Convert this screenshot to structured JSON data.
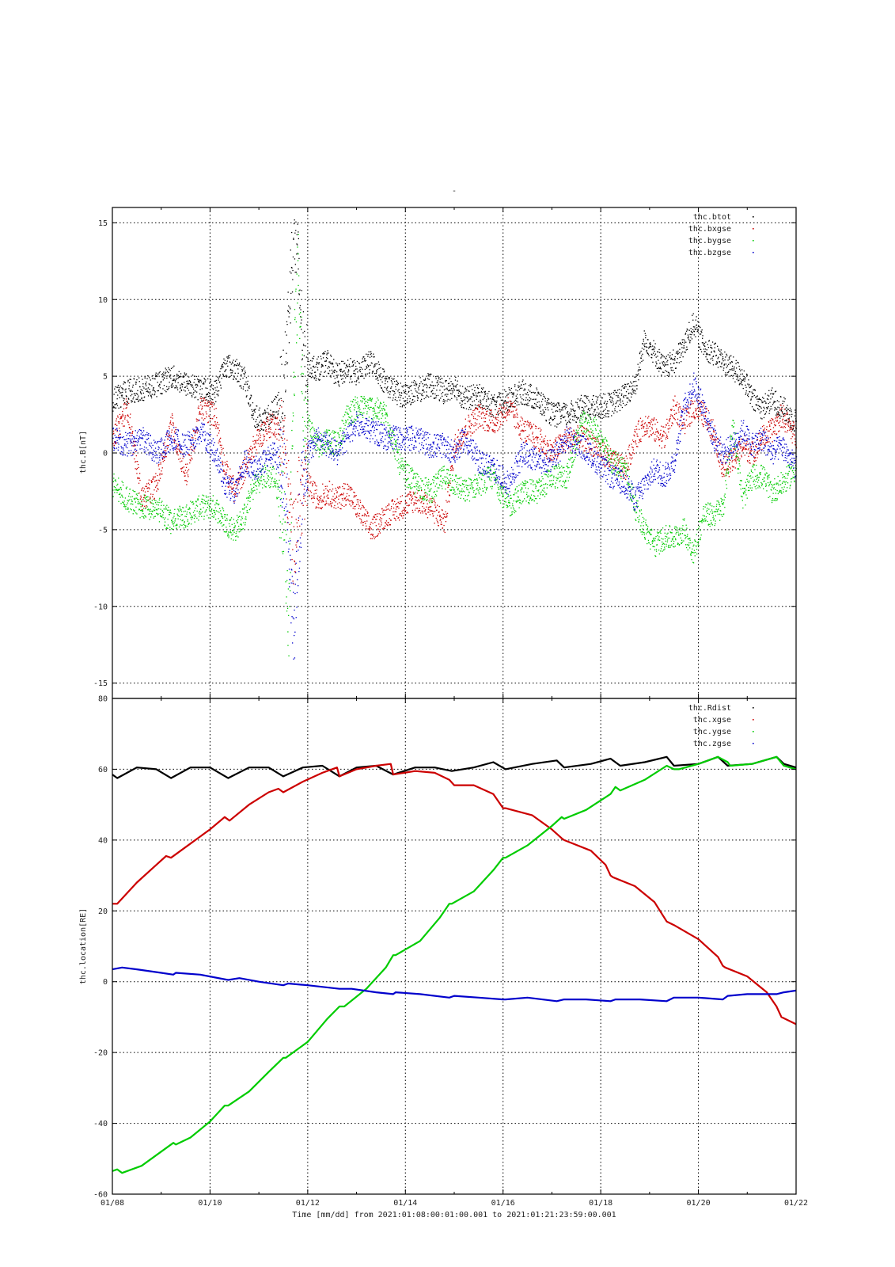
{
  "figure": {
    "title": "-"
  },
  "chart_data": [
    {
      "type": "scatter",
      "ylabel": "thc.B[nT]",
      "ylim": [
        -16,
        16
      ],
      "yticks": [
        -15,
        -10,
        -5,
        0,
        5,
        10,
        15
      ],
      "x_range": [
        "01/08",
        "01/22"
      ],
      "x_units": "day of January 2021",
      "grid": true,
      "legend_position": "top-right",
      "series": [
        {
          "name": "thc.btot",
          "color": "#000000",
          "x": [
            8.0,
            8.3,
            8.6,
            8.9,
            9.2,
            9.5,
            9.8,
            10.1,
            10.3,
            10.5,
            10.7,
            10.9,
            11.1,
            11.3,
            11.5,
            11.6,
            11.7,
            11.8,
            11.9,
            12.0,
            12.2,
            12.4,
            12.6,
            12.8,
            13.0,
            13.3,
            13.6,
            13.9,
            14.2,
            14.5,
            14.8,
            15.0,
            15.2,
            15.5,
            15.8,
            16.1,
            16.4,
            16.7,
            17.0,
            17.3,
            17.6,
            17.9,
            18.2,
            18.5,
            18.7,
            18.9,
            19.1,
            19.3,
            19.5,
            19.7,
            19.9,
            20.1,
            20.3,
            20.5,
            20.7,
            20.9,
            21.1,
            21.3,
            21.5,
            21.7,
            22.0
          ],
          "y": [
            3.5,
            4.0,
            4.2,
            4.5,
            5.0,
            4.5,
            4.2,
            4.0,
            5.8,
            5.5,
            4.8,
            2.5,
            2.0,
            2.8,
            4.0,
            9.0,
            14.5,
            12.0,
            6.5,
            5.8,
            5.5,
            6.0,
            5.0,
            5.5,
            5.2,
            6.0,
            4.5,
            3.8,
            4.0,
            4.5,
            4.0,
            4.5,
            3.5,
            3.8,
            3.0,
            3.5,
            4.0,
            3.5,
            2.5,
            2.5,
            3.0,
            3.0,
            3.2,
            3.8,
            4.5,
            7.5,
            6.5,
            5.5,
            6.0,
            7.0,
            8.5,
            7.0,
            6.5,
            6.0,
            5.5,
            5.0,
            3.5,
            3.0,
            3.5,
            3.0,
            2.0
          ]
        },
        {
          "name": "thc.bxgse",
          "color": "#cc0000",
          "x": [
            8.0,
            8.3,
            8.6,
            8.9,
            9.2,
            9.5,
            9.8,
            10.1,
            10.3,
            10.5,
            10.7,
            10.9,
            11.1,
            11.3,
            11.5,
            11.6,
            11.7,
            11.8,
            11.9,
            12.0,
            12.2,
            12.4,
            12.6,
            12.8,
            13.0,
            13.3,
            13.6,
            13.9,
            14.2,
            14.5,
            14.8,
            15.0,
            15.2,
            15.5,
            15.8,
            16.1,
            16.4,
            16.7,
            17.0,
            17.3,
            17.6,
            17.9,
            18.2,
            18.5,
            18.7,
            18.9,
            19.1,
            19.3,
            19.5,
            19.7,
            19.9,
            20.1,
            20.3,
            20.5,
            20.7,
            20.9,
            21.1,
            21.3,
            21.5,
            21.7,
            22.0
          ],
          "y": [
            1.0,
            3.0,
            -3.0,
            -2.0,
            2.0,
            -1.5,
            3.0,
            2.5,
            -1.0,
            -2.5,
            -1.0,
            0.5,
            1.5,
            2.0,
            1.0,
            -3.0,
            -6.0,
            -3.0,
            -2.5,
            -2.0,
            -3.0,
            -2.5,
            -3.0,
            -2.5,
            -3.5,
            -5.0,
            -4.0,
            -3.5,
            -3.0,
            -3.5,
            -4.5,
            0.5,
            1.5,
            2.5,
            2.0,
            3.0,
            1.5,
            1.0,
            0.0,
            1.0,
            1.0,
            0.5,
            -0.5,
            -1.0,
            1.0,
            2.0,
            1.5,
            1.0,
            3.0,
            2.0,
            3.0,
            2.5,
            1.5,
            -1.0,
            -0.5,
            0.5,
            0.0,
            1.0,
            1.5,
            2.5,
            1.0
          ]
        },
        {
          "name": "thc.bygse",
          "color": "#00cc00",
          "x": [
            8.0,
            8.3,
            8.6,
            8.9,
            9.2,
            9.5,
            9.8,
            10.1,
            10.3,
            10.5,
            10.7,
            10.9,
            11.1,
            11.3,
            11.5,
            11.6,
            11.7,
            11.8,
            11.9,
            12.0,
            12.2,
            12.4,
            12.6,
            12.8,
            13.0,
            13.3,
            13.6,
            13.9,
            14.2,
            14.5,
            14.8,
            15.0,
            15.2,
            15.5,
            15.8,
            16.1,
            16.4,
            16.7,
            17.0,
            17.3,
            17.6,
            17.9,
            18.2,
            18.5,
            18.7,
            18.9,
            19.1,
            19.3,
            19.5,
            19.7,
            19.9,
            20.1,
            20.3,
            20.5,
            20.7,
            20.9,
            21.1,
            21.3,
            21.5,
            21.7,
            22.0
          ],
          "y": [
            -2.0,
            -3.0,
            -3.5,
            -3.5,
            -4.5,
            -4.0,
            -3.5,
            -3.5,
            -4.5,
            -5.0,
            -4.0,
            -2.0,
            -1.5,
            -1.5,
            -4.0,
            -11.0,
            5.0,
            12.0,
            3.0,
            2.0,
            0.5,
            1.0,
            0.5,
            2.5,
            3.0,
            3.0,
            2.5,
            -1.0,
            -2.0,
            -2.5,
            -1.5,
            -2.0,
            -2.5,
            -2.0,
            -1.5,
            -3.5,
            -2.5,
            -2.5,
            -1.5,
            -1.5,
            2.0,
            1.5,
            -0.5,
            -1.0,
            -3.5,
            -5.0,
            -6.0,
            -5.5,
            -5.5,
            -5.0,
            -6.5,
            -4.0,
            -4.0,
            -3.5,
            2.0,
            -3.0,
            -1.5,
            -1.5,
            -2.5,
            -2.0,
            -1.0
          ]
        },
        {
          "name": "thc.bzgse",
          "color": "#0000cc",
          "x": [
            8.0,
            8.3,
            8.6,
            8.9,
            9.2,
            9.5,
            9.8,
            10.1,
            10.3,
            10.5,
            10.7,
            10.9,
            11.1,
            11.3,
            11.5,
            11.6,
            11.7,
            11.8,
            11.9,
            12.0,
            12.2,
            12.4,
            12.6,
            12.8,
            13.0,
            13.3,
            13.6,
            13.9,
            14.2,
            14.5,
            14.8,
            15.0,
            15.2,
            15.5,
            15.8,
            16.1,
            16.4,
            16.7,
            17.0,
            17.3,
            17.6,
            17.9,
            18.2,
            18.5,
            18.7,
            18.9,
            19.1,
            19.3,
            19.5,
            19.7,
            19.9,
            20.1,
            20.3,
            20.5,
            20.7,
            20.9,
            21.1,
            21.3,
            21.5,
            21.7,
            22.0
          ],
          "y": [
            1.0,
            0.5,
            1.0,
            0.0,
            1.0,
            0.5,
            1.5,
            0.0,
            -2.0,
            -2.5,
            -0.5,
            -1.0,
            -0.5,
            0.0,
            -1.0,
            -5.0,
            -12.0,
            -6.0,
            -1.5,
            0.0,
            1.0,
            0.5,
            0.0,
            1.0,
            2.0,
            1.5,
            1.0,
            1.0,
            1.0,
            0.5,
            0.5,
            0.0,
            1.0,
            -0.5,
            -1.0,
            -2.0,
            0.0,
            -0.5,
            -0.5,
            1.0,
            0.5,
            -0.5,
            -1.5,
            -2.0,
            -3.0,
            -2.0,
            -1.0,
            -1.5,
            -0.5,
            3.0,
            4.5,
            3.0,
            1.0,
            0.0,
            0.5,
            1.5,
            0.5,
            1.0,
            0.0,
            0.5,
            -1.0
          ]
        }
      ]
    },
    {
      "type": "line",
      "ylabel": "thc.location[RE]",
      "xlabel": "Time [mm/dd]  from 2021:01:08:00:01:00.001  to  2021:01:21:23:59:00.001",
      "ylim": [
        -60,
        80
      ],
      "yticks": [
        -60,
        -40,
        -20,
        0,
        20,
        40,
        60,
        80
      ],
      "x_range": [
        "01/08",
        "01/22"
      ],
      "x_units": "day of January 2021",
      "xticks": [
        "01/08",
        "01/10",
        "01/12",
        "01/14",
        "01/16",
        "01/18",
        "01/20",
        "01/22"
      ],
      "grid": true,
      "legend_position": "top-right",
      "series": [
        {
          "name": "thc.Rdist",
          "color": "#000000",
          "x": [
            8.0,
            8.1,
            8.5,
            8.9,
            9.2,
            9.6,
            10.0,
            10.37,
            10.8,
            11.2,
            11.5,
            11.9,
            12.3,
            12.65,
            13.0,
            13.4,
            13.75,
            14.2,
            14.6,
            14.95,
            15.4,
            15.8,
            16.05,
            16.6,
            17.1,
            17.25,
            17.8,
            18.2,
            18.4,
            18.9,
            19.35,
            19.5,
            20.0,
            20.4,
            20.6,
            21.1,
            21.6,
            21.75,
            22.0
          ],
          "y": [
            58.5,
            57.5,
            60.5,
            60.0,
            57.5,
            60.5,
            60.5,
            57.5,
            60.5,
            60.5,
            58.0,
            60.5,
            61.0,
            58.0,
            60.5,
            61.0,
            58.5,
            60.5,
            60.5,
            59.5,
            60.5,
            62.0,
            60.0,
            61.5,
            62.5,
            60.5,
            61.5,
            63.0,
            61.0,
            62.0,
            63.5,
            61.0,
            61.5,
            63.5,
            61.0,
            61.5,
            63.5,
            61.5,
            60.5
          ]
        },
        {
          "name": "thc.xgse",
          "color": "#cc0000",
          "x": [
            8.0,
            8.1,
            8.5,
            8.9,
            9.1,
            9.2,
            9.6,
            10.0,
            10.3,
            10.4,
            10.8,
            11.2,
            11.4,
            11.5,
            11.9,
            12.3,
            12.6,
            12.65,
            13.0,
            13.4,
            13.7,
            13.75,
            14.2,
            14.6,
            14.9,
            15.0,
            15.4,
            15.8,
            16.0,
            16.05,
            16.6,
            17.0,
            17.2,
            17.25,
            17.8,
            18.1,
            18.2,
            18.25,
            18.7,
            19.1,
            19.35,
            19.5,
            20.0,
            20.4,
            20.5,
            20.55,
            21.0,
            21.4,
            21.6,
            21.7,
            22.0
          ],
          "y": [
            22.0,
            22.0,
            28.0,
            33.0,
            35.5,
            35.0,
            39.0,
            43.0,
            46.5,
            45.5,
            50.0,
            53.5,
            54.5,
            53.5,
            56.5,
            59.0,
            60.5,
            58.0,
            60.0,
            61.0,
            61.5,
            58.5,
            59.5,
            59.0,
            57.0,
            55.5,
            55.5,
            53.0,
            49.0,
            49.0,
            47.0,
            43.0,
            40.5,
            40.0,
            37.0,
            33.0,
            30.0,
            29.5,
            27.0,
            22.5,
            17.0,
            16.0,
            12.0,
            7.0,
            4.5,
            4.0,
            1.5,
            -3.0,
            -7.0,
            -10.0,
            -12.0
          ]
        },
        {
          "name": "thc.ygse",
          "color": "#00cc00",
          "x": [
            8.0,
            8.1,
            8.2,
            8.6,
            9.0,
            9.25,
            9.3,
            9.6,
            10.0,
            10.3,
            10.37,
            10.8,
            11.2,
            11.5,
            11.55,
            12.0,
            12.4,
            12.65,
            12.75,
            13.2,
            13.6,
            13.75,
            13.8,
            14.3,
            14.7,
            14.9,
            14.95,
            15.4,
            15.8,
            16.0,
            16.05,
            16.5,
            17.0,
            17.2,
            17.25,
            17.7,
            18.2,
            18.3,
            18.4,
            18.9,
            19.35,
            19.5,
            19.6,
            20.0,
            20.4,
            20.6,
            20.65,
            21.1,
            21.6,
            21.75,
            22.0
          ],
          "y": [
            -53.5,
            -53.0,
            -54.0,
            -52.0,
            -48.0,
            -45.5,
            -46.0,
            -44.0,
            -39.5,
            -35.0,
            -35.0,
            -31.0,
            -25.5,
            -21.5,
            -21.5,
            -17.0,
            -10.5,
            -7.0,
            -7.0,
            -2.0,
            4.0,
            7.5,
            7.5,
            11.5,
            18.0,
            22.0,
            22.0,
            25.5,
            31.5,
            35.0,
            35.0,
            38.5,
            44.0,
            46.5,
            46.0,
            48.5,
            53.0,
            55.0,
            54.0,
            57.0,
            61.0,
            60.0,
            60.0,
            61.5,
            63.5,
            62.0,
            61.0,
            61.5,
            63.5,
            61.0,
            60.0
          ]
        },
        {
          "name": "thc.zgse",
          "color": "#0000cc",
          "x": [
            8.0,
            8.2,
            8.5,
            9.0,
            9.25,
            9.3,
            9.8,
            10.37,
            10.6,
            11.0,
            11.5,
            11.6,
            12.0,
            12.65,
            12.9,
            13.4,
            13.75,
            13.8,
            14.3,
            14.9,
            15.0,
            15.5,
            16.0,
            16.05,
            16.5,
            17.1,
            17.25,
            17.7,
            18.2,
            18.3,
            18.8,
            19.35,
            19.5,
            20.0,
            20.5,
            20.6,
            21.0,
            21.6,
            21.75,
            22.0
          ],
          "y": [
            3.5,
            4.0,
            3.5,
            2.5,
            2.0,
            2.5,
            2.0,
            0.5,
            1.0,
            0.0,
            -1.0,
            -0.5,
            -1.0,
            -2.0,
            -2.0,
            -3.0,
            -3.5,
            -3.0,
            -3.5,
            -4.5,
            -4.0,
            -4.5,
            -5.0,
            -5.0,
            -4.5,
            -5.5,
            -5.0,
            -5.0,
            -5.5,
            -5.0,
            -5.0,
            -5.5,
            -4.5,
            -4.5,
            -5.0,
            -4.0,
            -3.5,
            -3.5,
            -3.0,
            -2.5
          ]
        }
      ]
    }
  ]
}
